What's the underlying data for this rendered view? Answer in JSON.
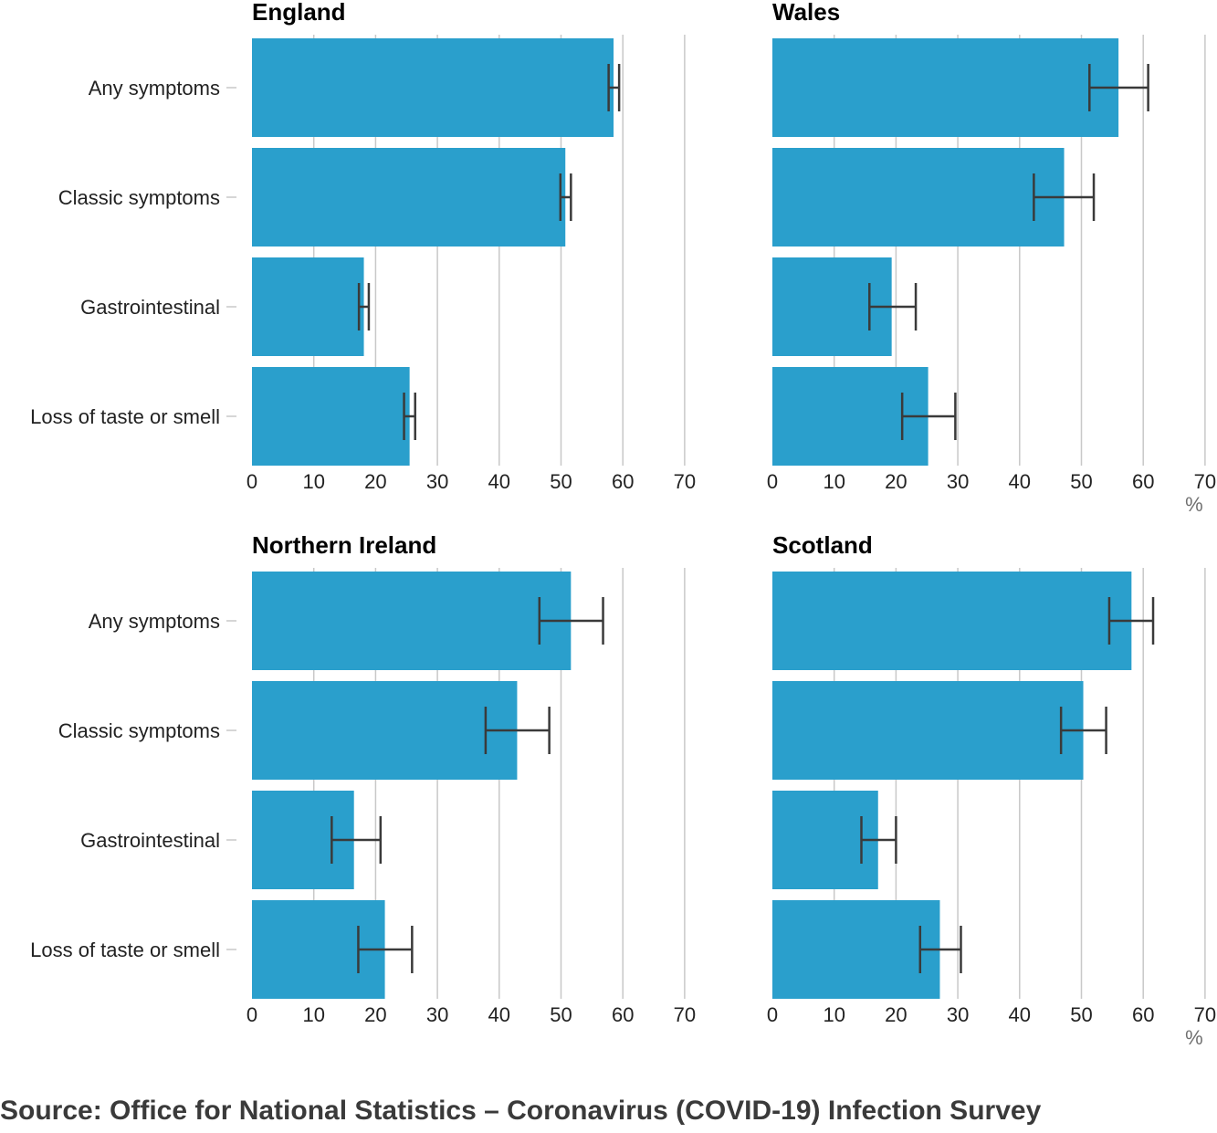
{
  "source": "Source: Office for National Statistics – Coronavirus (COVID-19) Infection Survey",
  "colors": {
    "bar": "#2a9fcc",
    "error_bar": "#3a3a3a",
    "grid": "#c8c8c8"
  },
  "chart_data": [
    {
      "type": "bar",
      "orientation": "horizontal",
      "title": "England",
      "categories": [
        "Any symptoms",
        "Classic symptoms",
        "Gastrointestinal",
        "Loss of taste or smell"
      ],
      "values": [
        58.5,
        50.7,
        18.1,
        25.5
      ],
      "error_low": [
        57.7,
        49.9,
        17.3,
        24.6
      ],
      "error_high": [
        59.4,
        51.6,
        18.9,
        26.4
      ],
      "xlim": [
        0,
        70
      ],
      "xticks": [
        "0",
        "10",
        "20",
        "30",
        "40",
        "50",
        "60",
        "70"
      ],
      "unit": "",
      "grid": true
    },
    {
      "type": "bar",
      "orientation": "horizontal",
      "title": "Wales",
      "categories": [
        "Any symptoms",
        "Classic symptoms",
        "Gastrointestinal",
        "Loss of taste or smell"
      ],
      "values": [
        56.0,
        47.2,
        19.3,
        25.2
      ],
      "error_low": [
        51.3,
        42.3,
        15.7,
        21.0
      ],
      "error_high": [
        60.8,
        52.0,
        23.2,
        29.6
      ],
      "xlim": [
        0,
        70
      ],
      "xticks": [
        "0",
        "10",
        "20",
        "30",
        "40",
        "50",
        "60",
        "70"
      ],
      "unit": "%",
      "grid": true
    },
    {
      "type": "bar",
      "orientation": "horizontal",
      "title": "Northern Ireland",
      "categories": [
        "Any symptoms",
        "Classic symptoms",
        "Gastrointestinal",
        "Loss of taste or smell"
      ],
      "values": [
        51.6,
        42.9,
        16.5,
        21.5
      ],
      "error_low": [
        46.5,
        37.8,
        12.9,
        17.2
      ],
      "error_high": [
        56.8,
        48.1,
        20.8,
        25.9
      ],
      "xlim": [
        0,
        70
      ],
      "xticks": [
        "0",
        "10",
        "20",
        "30",
        "40",
        "50",
        "60",
        "70"
      ],
      "unit": "",
      "grid": true
    },
    {
      "type": "bar",
      "orientation": "horizontal",
      "title": "Scotland",
      "categories": [
        "Any symptoms",
        "Classic symptoms",
        "Gastrointestinal",
        "Loss of taste or smell"
      ],
      "values": [
        58.1,
        50.3,
        17.1,
        27.1
      ],
      "error_low": [
        54.5,
        46.7,
        14.4,
        23.9
      ],
      "error_high": [
        61.6,
        54.0,
        20.0,
        30.5
      ],
      "xlim": [
        0,
        70
      ],
      "xticks": [
        "0",
        "10",
        "20",
        "30",
        "40",
        "50",
        "60",
        "70"
      ],
      "unit": "%",
      "grid": true
    }
  ]
}
